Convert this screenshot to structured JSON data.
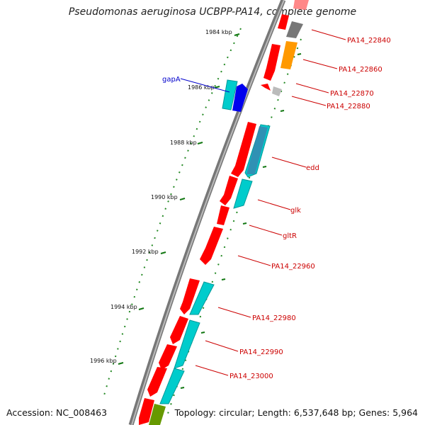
{
  "title": "Pseudomonas aeruginosa UCBPP-PA14, complete genome",
  "footer": {
    "accession": "Accession: NC_008463",
    "summary": "Topology: circular; Length: 6,537,648 bp; Genes: 5,964"
  },
  "ticks": [
    "1984 kbp",
    "1986 kbp",
    "1988 kbp",
    "1990 kbp",
    "1992 kbp",
    "1994 kbp",
    "1996 kbp"
  ],
  "gene_labels": [
    {
      "name": "gapA",
      "color": "#0000cc",
      "side": "left"
    },
    {
      "name": "PA14_22840",
      "color": "#cc0000",
      "side": "right"
    },
    {
      "name": "PA14_22860",
      "color": "#cc0000",
      "side": "right"
    },
    {
      "name": "PA14_22870",
      "color": "#cc0000",
      "side": "right"
    },
    {
      "name": "PA14_22880",
      "color": "#cc0000",
      "side": "right"
    },
    {
      "name": "edd",
      "color": "#cc0000",
      "side": "right"
    },
    {
      "name": "glk",
      "color": "#cc0000",
      "side": "right"
    },
    {
      "name": "gltR",
      "color": "#cc0000",
      "side": "right"
    },
    {
      "name": "PA14_22960",
      "color": "#cc0000",
      "side": "right"
    },
    {
      "name": "PA14_22980",
      "color": "#cc0000",
      "side": "right"
    },
    {
      "name": "PA14_22990",
      "color": "#cc0000",
      "side": "right"
    },
    {
      "name": "PA14_23000",
      "color": "#cc0000",
      "side": "right"
    }
  ],
  "colors": {
    "cds": "#ff0000",
    "cds_alt": "#00cccc",
    "gapA": "#0000ee",
    "orange": "#ff9900",
    "gray": "#777777",
    "olive": "#669900",
    "backbone": "#888888",
    "tick": "#117711"
  }
}
